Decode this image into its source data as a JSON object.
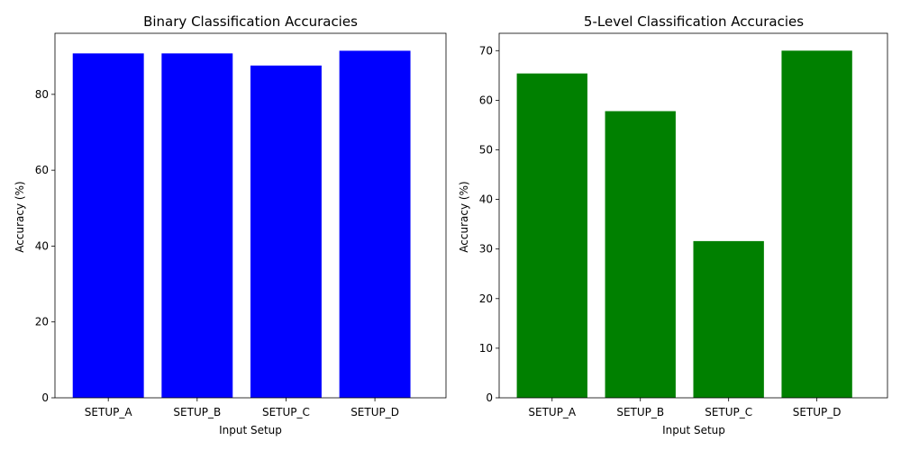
{
  "chart_data": [
    {
      "type": "bar",
      "title": "Binary Classification Accuracies",
      "xlabel": "Input Setup",
      "ylabel": "Accuracy (%)",
      "categories": [
        "SETUP_A",
        "SETUP_B",
        "SETUP_C",
        "SETUP_D"
      ],
      "values": [
        90.8,
        90.8,
        87.6,
        91.5
      ],
      "ylim": [
        0,
        96.1
      ],
      "yticks": [
        0,
        20,
        40,
        60,
        80
      ],
      "color": "#0000ff",
      "grid": false
    },
    {
      "type": "bar",
      "title": "5-Level Classification Accuracies",
      "xlabel": "Input Setup",
      "ylabel": "Accuracy (%)",
      "categories": [
        "SETUP_A",
        "SETUP_B",
        "SETUP_C",
        "SETUP_D"
      ],
      "values": [
        65.4,
        57.8,
        31.6,
        70.0
      ],
      "ylim": [
        0,
        73.5
      ],
      "yticks": [
        0,
        10,
        20,
        30,
        40,
        50,
        60,
        70
      ],
      "color": "#008000",
      "grid": false
    }
  ]
}
